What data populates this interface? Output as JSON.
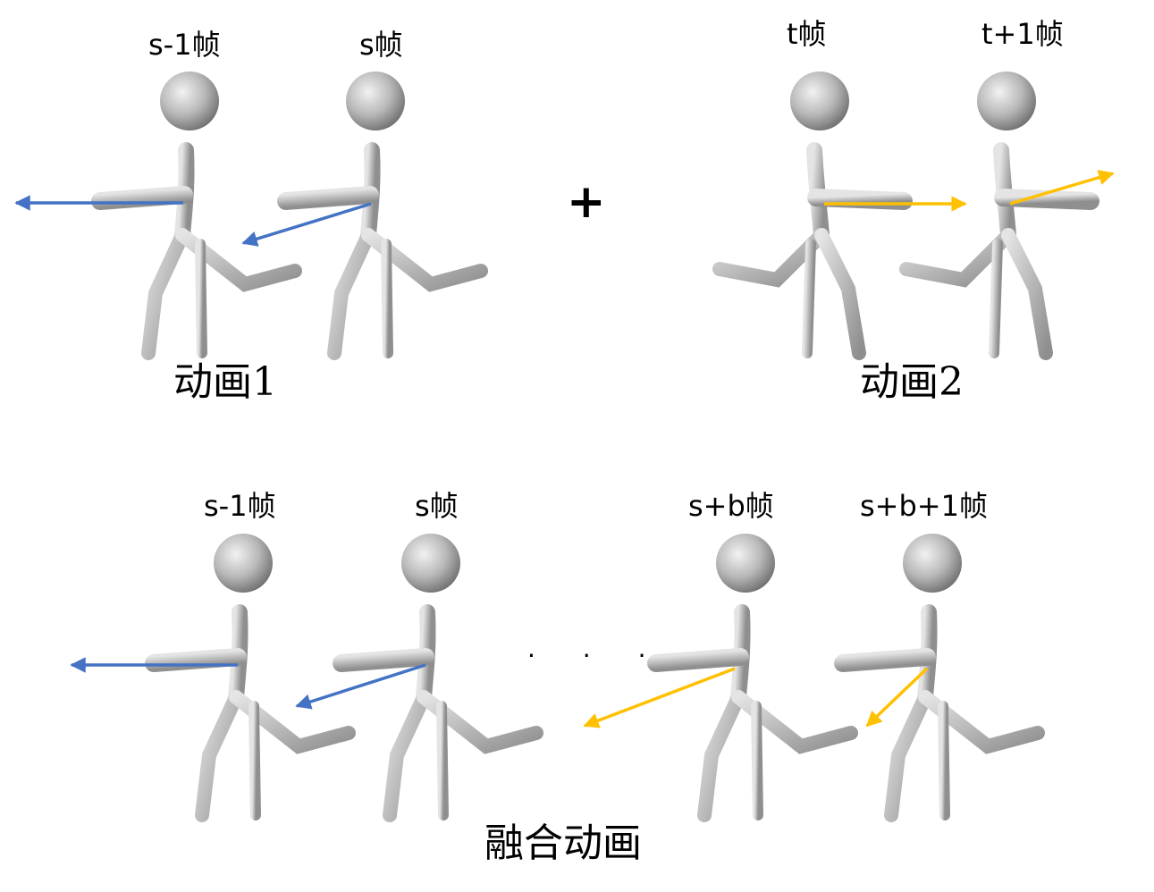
{
  "colors": {
    "arrow_blue": "#4472C4",
    "arrow_yellow": "#FFC000",
    "figure_fill": "#c8c8c8",
    "figure_shade": "#9a9a9a",
    "text": "#000000",
    "background": "#ffffff"
  },
  "animation1": {
    "caption": "动画1",
    "frames": [
      {
        "label": "s-1帧",
        "arrow_color": "blue"
      },
      {
        "label": "s帧",
        "arrow_color": "blue"
      }
    ]
  },
  "operator": "+",
  "animation2": {
    "caption": "动画2",
    "frames": [
      {
        "label": "t帧",
        "arrow_color": "yellow"
      },
      {
        "label": "t+1帧",
        "arrow_color": "yellow"
      }
    ]
  },
  "blended": {
    "caption": "融合动画",
    "ellipsis": "· · ·",
    "frames": [
      {
        "label": "s-1帧",
        "arrow_color": "blue"
      },
      {
        "label": "s帧",
        "arrow_color": "blue"
      },
      {
        "label": "s+b帧",
        "arrow_color": "yellow"
      },
      {
        "label": "s+b+1帧",
        "arrow_color": "yellow"
      }
    ]
  },
  "icons": {
    "figure": "stick-figure-walker-icon",
    "arrow": "direction-arrow-icon"
  }
}
